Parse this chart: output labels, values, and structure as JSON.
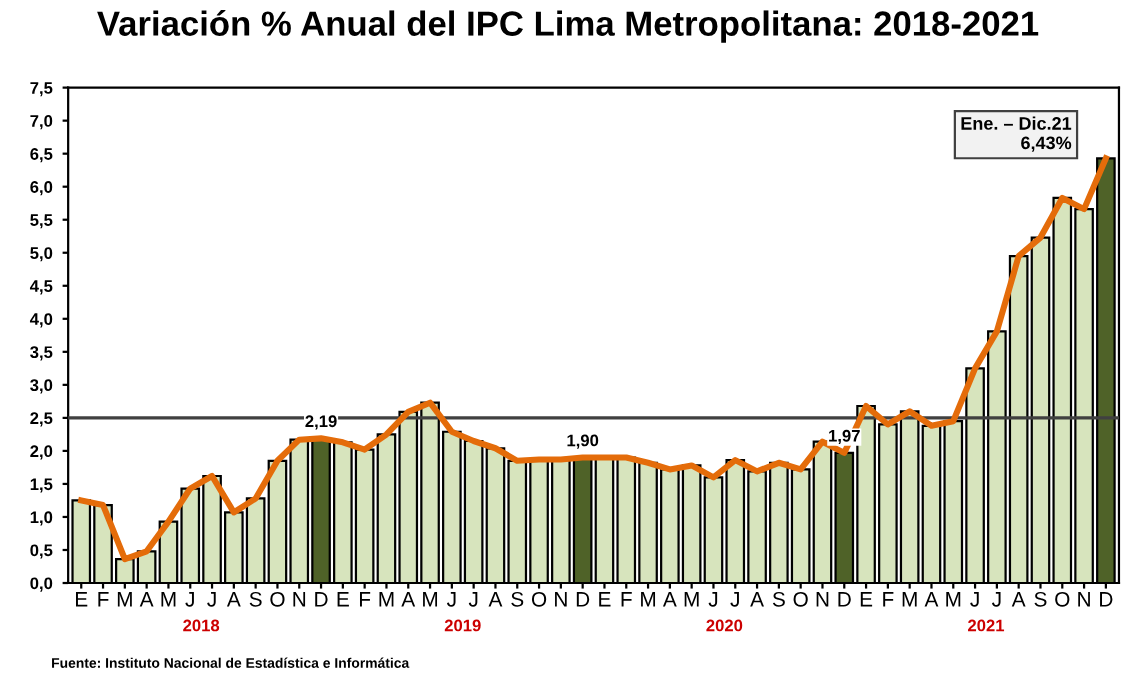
{
  "chart_data": {
    "type": "bar",
    "title": "Variación % Anual del IPC Lima Metropolitana: 2018-2021",
    "categories": [
      "E",
      "F",
      "M",
      "A",
      "M",
      "J",
      "J",
      "A",
      "S",
      "O",
      "N",
      "D",
      "E",
      "F",
      "M",
      "A",
      "M",
      "J",
      "J",
      "A",
      "S",
      "O",
      "N",
      "D",
      "E",
      "F",
      "M",
      "A",
      "M",
      "J",
      "J",
      "A",
      "S",
      "O",
      "N",
      "D",
      "E",
      "F",
      "M",
      "A",
      "M",
      "J",
      "J",
      "A",
      "S",
      "O",
      "N",
      "D"
    ],
    "series": [
      {
        "colors": [
          "#d7e4bd",
          "#d7e4bd",
          "#d7e4bd",
          "#d7e4bd",
          "#d7e4bd",
          "#d7e4bd",
          "#d7e4bd",
          "#d7e4bd",
          "#d7e4bd",
          "#d7e4bd",
          "#d7e4bd",
          "#4f6228",
          "#d7e4bd",
          "#d7e4bd",
          "#d7e4bd",
          "#d7e4bd",
          "#d7e4bd",
          "#d7e4bd",
          "#d7e4bd",
          "#d7e4bd",
          "#d7e4bd",
          "#d7e4bd",
          "#d7e4bd",
          "#4f6228",
          "#d7e4bd",
          "#d7e4bd",
          "#d7e4bd",
          "#d7e4bd",
          "#d7e4bd",
          "#d7e4bd",
          "#d7e4bd",
          "#d7e4bd",
          "#d7e4bd",
          "#d7e4bd",
          "#d7e4bd",
          "#4f6228",
          "#d7e4bd",
          "#d7e4bd",
          "#d7e4bd",
          "#d7e4bd",
          "#d7e4bd",
          "#d7e4bd",
          "#d7e4bd",
          "#d7e4bd",
          "#d7e4bd",
          "#d7e4bd",
          "#d7e4bd",
          "#4f6228"
        ],
        "values": [
          1.25,
          1.18,
          0.36,
          0.48,
          0.93,
          1.43,
          1.62,
          1.07,
          1.28,
          1.85,
          2.17,
          2.19,
          2.13,
          2.02,
          2.25,
          2.59,
          2.73,
          2.29,
          2.15,
          2.04,
          1.85,
          1.87,
          1.87,
          1.9,
          1.9,
          1.9,
          1.82,
          1.72,
          1.78,
          1.6,
          1.86,
          1.69,
          1.82,
          1.72,
          2.14,
          1.97,
          2.68,
          2.4,
          2.6,
          2.38,
          2.45,
          3.25,
          3.81,
          4.95,
          5.23,
          5.83,
          5.66,
          6.43
        ],
        "value_labels": [
          null,
          null,
          null,
          null,
          null,
          null,
          null,
          null,
          null,
          null,
          null,
          "2,19",
          null,
          null,
          null,
          null,
          null,
          null,
          null,
          null,
          null,
          null,
          null,
          "1,90",
          null,
          null,
          null,
          null,
          null,
          null,
          null,
          null,
          null,
          null,
          null,
          "1,97",
          null,
          null,
          null,
          null,
          null,
          null,
          null,
          null,
          null,
          null,
          null,
          null
        ]
      },
      {
        "type": "line",
        "color": "#e46c0a",
        "values": [
          1.25,
          1.18,
          0.36,
          0.48,
          0.93,
          1.43,
          1.62,
          1.07,
          1.28,
          1.85,
          2.17,
          2.19,
          2.13,
          2.02,
          2.25,
          2.59,
          2.73,
          2.29,
          2.15,
          2.04,
          1.85,
          1.87,
          1.87,
          1.9,
          1.9,
          1.9,
          1.82,
          1.72,
          1.78,
          1.6,
          1.86,
          1.69,
          1.82,
          1.72,
          2.14,
          1.97,
          2.68,
          2.4,
          2.6,
          2.38,
          2.45,
          3.25,
          3.81,
          4.95,
          5.23,
          5.83,
          5.66,
          6.43
        ]
      }
    ],
    "ylim": [
      0,
      7.5
    ],
    "yticks": [
      {
        "value": 0,
        "label": "0,0"
      },
      {
        "value": 0.5,
        "label": "0,5"
      },
      {
        "value": 1,
        "label": "1,0"
      },
      {
        "value": 1.5,
        "label": "1,5"
      },
      {
        "value": 2,
        "label": "2,0"
      },
      {
        "value": 2.5,
        "label": "2,5"
      },
      {
        "value": 3,
        "label": "3,0"
      },
      {
        "value": 3.5,
        "label": "3,5"
      },
      {
        "value": 4,
        "label": "4,0"
      },
      {
        "value": 4.5,
        "label": "4,5"
      },
      {
        "value": 5,
        "label": "5,0"
      },
      {
        "value": 5.5,
        "label": "5,5"
      },
      {
        "value": 6,
        "label": "6,0"
      },
      {
        "value": 6.5,
        "label": "6,5"
      },
      {
        "value": 7,
        "label": "7,0"
      },
      {
        "value": 7.5,
        "label": "7,5"
      }
    ],
    "ref_lines": [
      {
        "axis": "y",
        "value": 2.5,
        "color": "#404040"
      }
    ],
    "grid": false,
    "legend": false,
    "annotations": [
      "2018",
      "2019",
      "2020",
      "2021",
      "Ene. – Dic.21\n6,43%",
      "Fuente: Instituto Nacional de Estadística e Informática"
    ]
  }
}
